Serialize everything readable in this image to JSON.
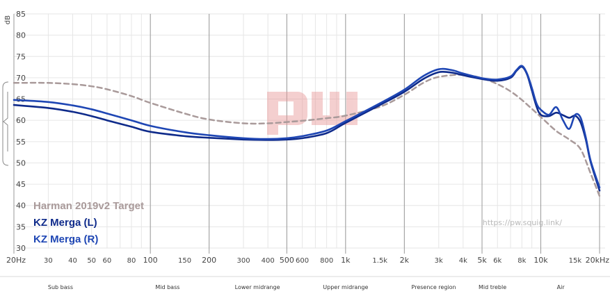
{
  "chart_data": {
    "type": "line",
    "yunit": "dB",
    "ylim": [
      30,
      85
    ],
    "yticks": [
      "30",
      "35",
      "40",
      "45",
      "50",
      "55",
      "60",
      "65",
      "70",
      "75",
      "80",
      "85"
    ],
    "xscale": "log",
    "xlim": [
      20,
      20000
    ],
    "xticks": [
      {
        "f": 20,
        "label": "20Hz",
        "major": true
      },
      {
        "f": 30,
        "label": "30",
        "major": false
      },
      {
        "f": 40,
        "label": "40",
        "major": false
      },
      {
        "f": 50,
        "label": "50",
        "major": false
      },
      {
        "f": 60,
        "label": "60",
        "major": false
      },
      {
        "f": 80,
        "label": "80",
        "major": false
      },
      {
        "f": 100,
        "label": "100",
        "major": true
      },
      {
        "f": 150,
        "label": "150",
        "major": false
      },
      {
        "f": 200,
        "label": "200",
        "major": true
      },
      {
        "f": 300,
        "label": "300",
        "major": false
      },
      {
        "f": 400,
        "label": "400",
        "major": false
      },
      {
        "f": 500,
        "label": "500",
        "major": true
      },
      {
        "f": 600,
        "label": "600",
        "major": false
      },
      {
        "f": 800,
        "label": "800",
        "major": false
      },
      {
        "f": 1000,
        "label": "1k",
        "major": true
      },
      {
        "f": 1500,
        "label": "1.5k",
        "major": false
      },
      {
        "f": 2000,
        "label": "2k",
        "major": true
      },
      {
        "f": 3000,
        "label": "3k",
        "major": false
      },
      {
        "f": 4000,
        "label": "4k",
        "major": false
      },
      {
        "f": 5000,
        "label": "5k",
        "major": true
      },
      {
        "f": 6000,
        "label": "6k",
        "major": false
      },
      {
        "f": 8000,
        "label": "8k",
        "major": false
      },
      {
        "f": 10000,
        "label": "10k",
        "major": true
      },
      {
        "f": 15000,
        "label": "15k",
        "major": false
      },
      {
        "f": 20000,
        "label": "20kHz",
        "major": true
      }
    ],
    "series": [
      {
        "name": "Harman 2019v2 Target",
        "color": "#a99a9a",
        "dashed": true,
        "x": [
          20,
          30,
          40,
          50,
          60,
          80,
          100,
          150,
          200,
          300,
          400,
          500,
          600,
          800,
          1000,
          1500,
          2000,
          2500,
          3000,
          4000,
          5000,
          6000,
          7000,
          8000,
          9000,
          10000,
          12000,
          14000,
          16000,
          18000,
          20000
        ],
        "y": [
          68.8,
          68.8,
          68.5,
          68.0,
          67.3,
          65.7,
          64.1,
          61.6,
          60.2,
          59.3,
          59.3,
          59.6,
          59.9,
          60.5,
          61.1,
          63.2,
          66.0,
          68.8,
          70.2,
          70.7,
          69.9,
          68.5,
          66.8,
          64.8,
          62.7,
          60.8,
          57.5,
          55.5,
          53.2,
          47.5,
          42.2
        ]
      },
      {
        "name": "KZ Merga (L)",
        "color": "#0e2a8a",
        "dashed": false,
        "x": [
          20,
          30,
          40,
          50,
          60,
          80,
          100,
          150,
          200,
          300,
          400,
          500,
          600,
          800,
          1000,
          1500,
          2000,
          2500,
          3000,
          3500,
          4000,
          5000,
          6000,
          7000,
          7500,
          8000,
          8500,
          9000,
          9500,
          10000,
          11000,
          12000,
          13000,
          14000,
          15000,
          16000,
          17000,
          18000,
          20000
        ],
        "y": [
          63.6,
          62.9,
          62.0,
          61.0,
          60.0,
          58.5,
          57.3,
          56.3,
          55.9,
          55.5,
          55.4,
          55.5,
          55.8,
          57.0,
          59.4,
          63.6,
          66.7,
          69.7,
          71.3,
          71.2,
          70.6,
          69.7,
          69.3,
          70.0,
          71.6,
          72.6,
          70.8,
          67.0,
          63.3,
          61.3,
          61.0,
          61.8,
          61.2,
          60.6,
          61.1,
          59.5,
          55.5,
          50.2,
          43.5
        ]
      },
      {
        "name": "KZ Merga (R)",
        "color": "#1e46b4",
        "dashed": false,
        "x": [
          20,
          30,
          40,
          50,
          60,
          80,
          100,
          150,
          200,
          300,
          400,
          500,
          600,
          800,
          1000,
          1500,
          2000,
          2500,
          3000,
          3500,
          4000,
          5000,
          6000,
          7000,
          7500,
          8000,
          8500,
          9000,
          9500,
          10000,
          11000,
          12000,
          13000,
          14000,
          15000,
          16000,
          17000,
          18000,
          20000
        ],
        "y": [
          64.8,
          64.3,
          63.5,
          62.6,
          61.6,
          60.0,
          58.7,
          57.2,
          56.5,
          55.8,
          55.6,
          55.8,
          56.3,
          57.6,
          59.8,
          64.0,
          67.2,
          70.4,
          72.0,
          71.8,
          71.0,
          69.9,
          69.6,
          70.3,
          71.8,
          72.8,
          71.0,
          67.6,
          64.0,
          62.5,
          61.3,
          63.1,
          60.0,
          58.0,
          61.3,
          60.6,
          56.0,
          50.5,
          44.2
        ]
      }
    ],
    "legend": {
      "placement": "bottom-left",
      "entries": [
        "Harman 2019v2 Target",
        "KZ Merga (L)",
        "KZ Merga (R)"
      ]
    },
    "watermark": "pw",
    "credit": "https://pw.squig.link/",
    "regions": [
      {
        "label": "Sub bass",
        "from": 20,
        "to": 60
      },
      {
        "label": "Mid bass",
        "from": 60,
        "to": 250
      },
      {
        "label": "Lower midrange",
        "from": 250,
        "to": 500
      },
      {
        "label": "Upper midrange",
        "from": 500,
        "to": 2000
      },
      {
        "label": "Presence region",
        "from": 2000,
        "to": 4000
      },
      {
        "label": "Mid treble",
        "from": 4000,
        "to": 8000
      },
      {
        "label": "Air",
        "from": 8000,
        "to": 20000
      }
    ]
  }
}
